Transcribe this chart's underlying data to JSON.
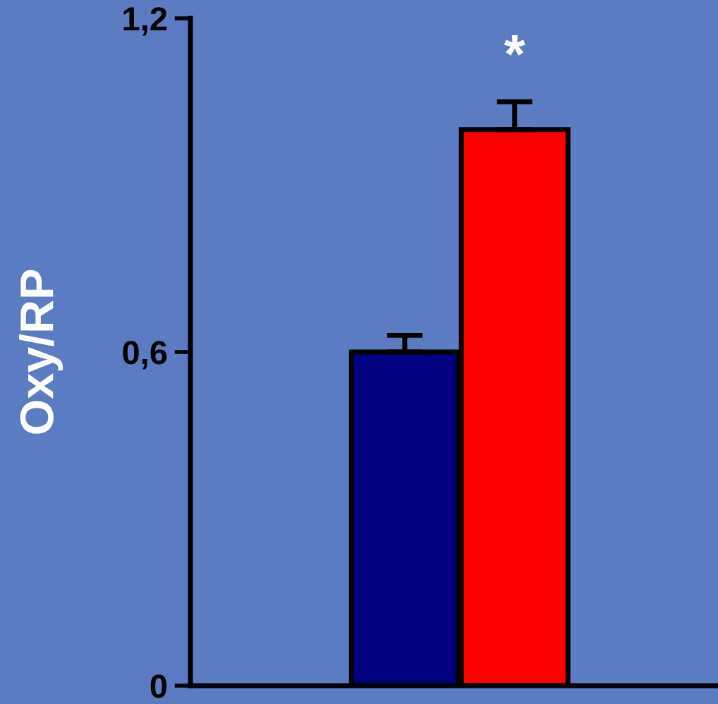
{
  "chart_data": {
    "type": "bar",
    "ylabel": "Oxy/RP",
    "categories": [
      null,
      null
    ],
    "values": [
      0.6,
      1.0
    ],
    "colors": [
      "#000080",
      "#ff0000"
    ],
    "errors": [
      0.03,
      0.05
    ],
    "ylim": [
      0,
      1.2
    ],
    "yticks": [
      {
        "value": 0,
        "label": "0"
      },
      {
        "value": 0.6,
        "label": "0,6"
      },
      {
        "value": 1.2,
        "label": "1,2"
      }
    ],
    "annotations": [
      "*"
    ],
    "grid": false,
    "tick_labels": "y"
  }
}
